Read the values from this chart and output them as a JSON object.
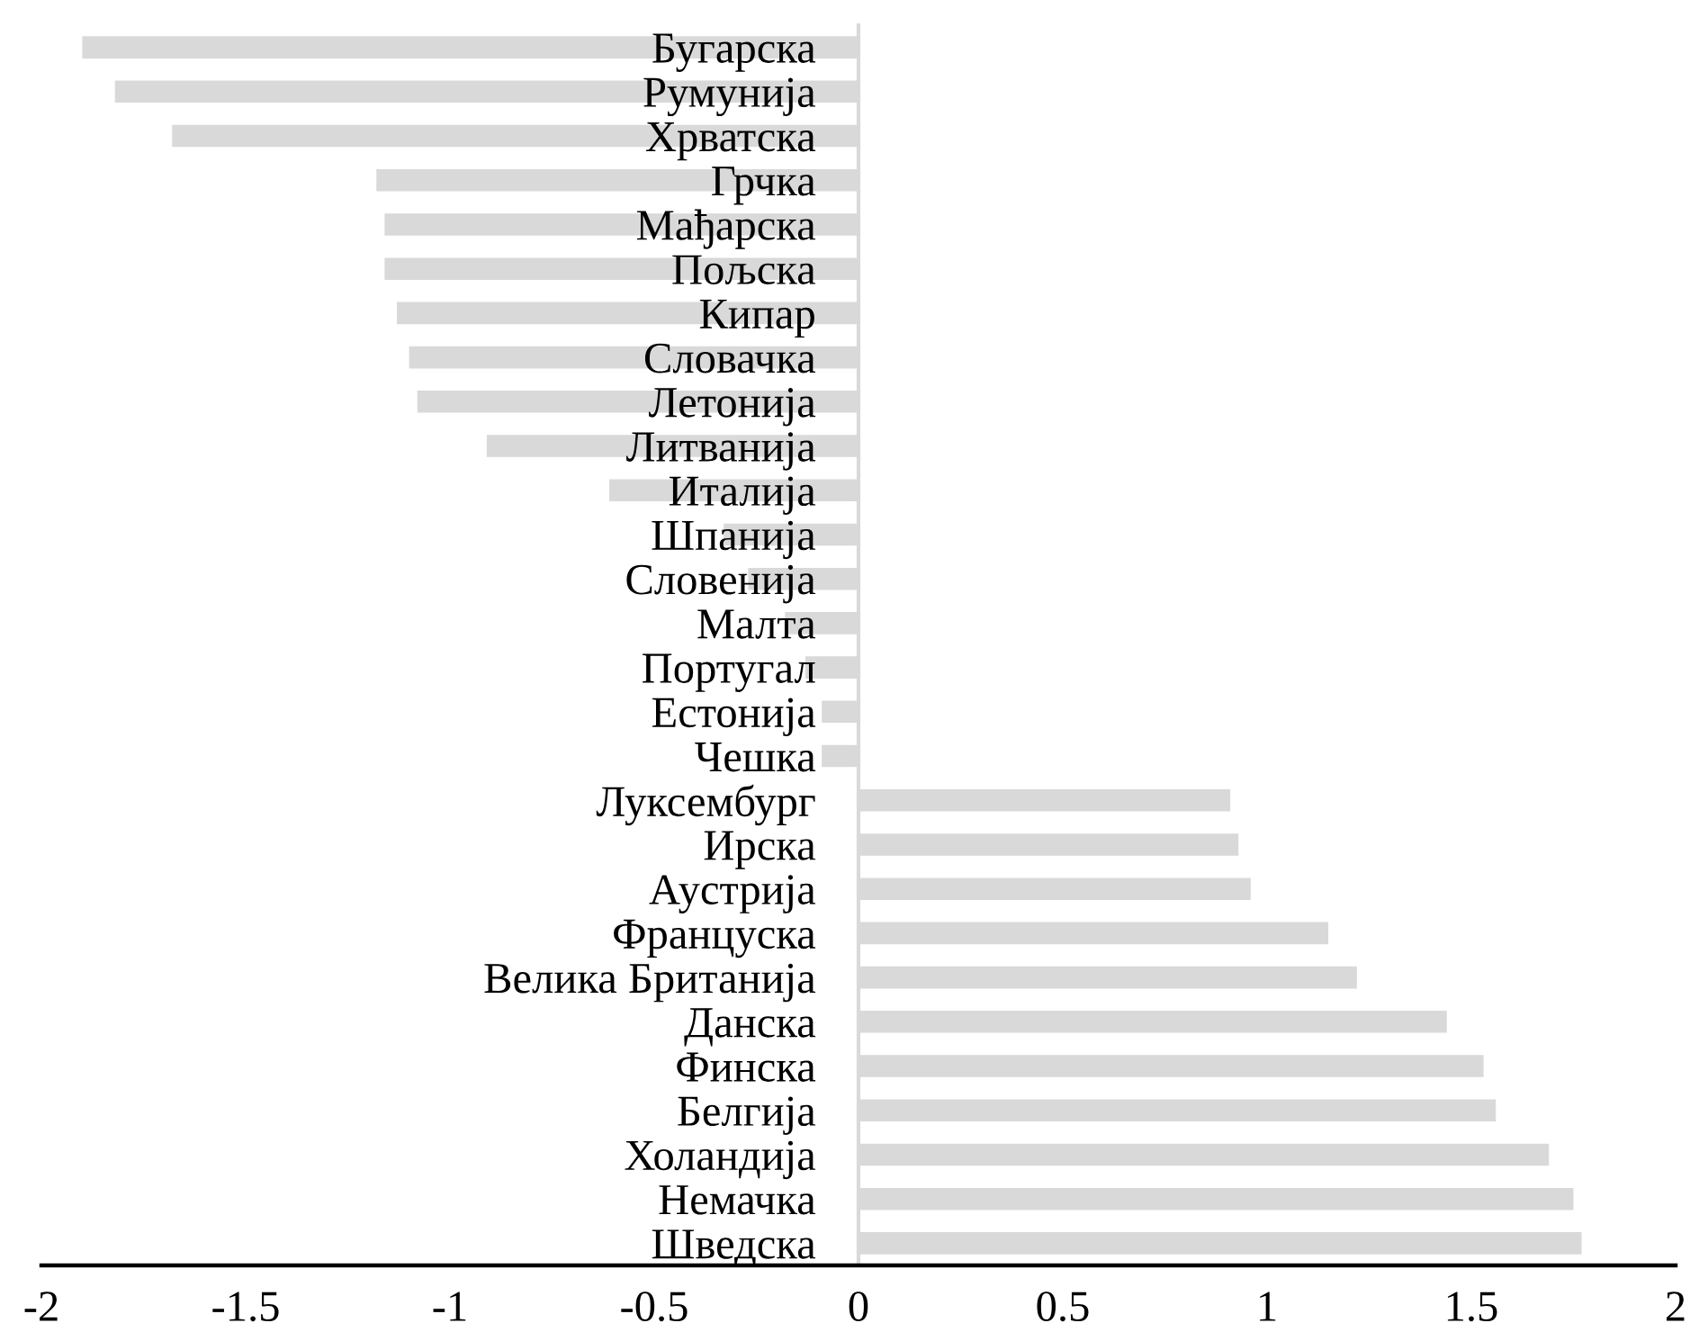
{
  "chart_data": {
    "type": "bar",
    "orientation": "horizontal",
    "categories": [
      "Бугарска",
      "Румунија",
      "Хрватска",
      "Грчка",
      "Мађарска",
      "Пољска",
      "Кипар",
      "Словачка",
      "Летонија",
      "Литванија",
      "Италија",
      "Шпанија",
      "Словенија",
      "Малта",
      "Португал",
      "Естонија",
      "Чешка",
      "Луксембург",
      "Ирска",
      "Аустрија",
      "Француска",
      "Велика Британија",
      "Данска",
      "Финска",
      "Белгија",
      "Холандија",
      "Немачка",
      "Шведска"
    ],
    "values": [
      -1.9,
      -1.82,
      -1.68,
      -1.18,
      -1.16,
      -1.16,
      -1.13,
      -1.1,
      -1.08,
      -0.91,
      -0.61,
      -0.33,
      -0.27,
      -0.18,
      -0.13,
      -0.09,
      -0.09,
      0.91,
      0.93,
      0.96,
      1.15,
      1.22,
      1.44,
      1.53,
      1.56,
      1.69,
      1.75,
      1.77
    ],
    "color": "#d9d9d9",
    "xlim": [
      -2,
      2
    ],
    "xticks": [
      -2,
      -1.5,
      -1,
      -0.5,
      0,
      0.5,
      1,
      1.5,
      2
    ],
    "grid": false,
    "legend": false
  }
}
